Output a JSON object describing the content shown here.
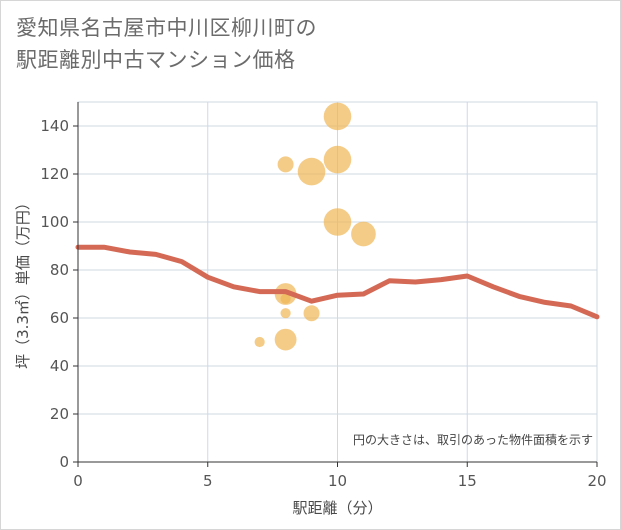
{
  "title_line1": "愛知県名古屋市中川区柳川町の",
  "title_line2": "駅距離別中古マンション価格",
  "chart_data": {
    "type": "scatter+line",
    "title": "愛知県名古屋市中川区柳川町の駅距離別中古マンション価格",
    "xlabel": "駅距離（分）",
    "ylabel": "坪（3.3㎡）単価（万円）",
    "xlim": [
      0,
      20
    ],
    "ylim": [
      0,
      150
    ],
    "x_ticks": [
      0,
      5,
      10,
      15,
      20
    ],
    "y_ticks": [
      0,
      20,
      40,
      60,
      80,
      100,
      120,
      140
    ],
    "grid": true,
    "note": "円の大きさは、取引のあった物件面積を示す",
    "bubble_color": "#f0b755",
    "line_color": "#d46a55",
    "bubbles": [
      {
        "x": 7,
        "y": 50,
        "size": 1
      },
      {
        "x": 8,
        "y": 124,
        "size": 2
      },
      {
        "x": 8,
        "y": 70,
        "size": 3
      },
      {
        "x": 8,
        "y": 68,
        "size": 1
      },
      {
        "x": 8,
        "y": 62,
        "size": 1
      },
      {
        "x": 8,
        "y": 51,
        "size": 3
      },
      {
        "x": 9,
        "y": 121,
        "size": 4
      },
      {
        "x": 9,
        "y": 62,
        "size": 2
      },
      {
        "x": 10,
        "y": 144,
        "size": 4
      },
      {
        "x": 10,
        "y": 126,
        "size": 4
      },
      {
        "x": 10,
        "y": 100,
        "size": 4
      },
      {
        "x": 11,
        "y": 95,
        "size": 3.5
      }
    ],
    "line": {
      "x": [
        0,
        1,
        2,
        3,
        4,
        5,
        6,
        7,
        8,
        9,
        10,
        11,
        12,
        13,
        14,
        15,
        16,
        17,
        18,
        19,
        20
      ],
      "y": [
        89.5,
        89.5,
        87.5,
        86.5,
        83.5,
        77,
        73,
        71,
        71,
        67,
        69.5,
        70,
        75.5,
        75,
        76,
        77.5,
        73,
        69,
        66.5,
        65,
        60.5
      ]
    }
  }
}
